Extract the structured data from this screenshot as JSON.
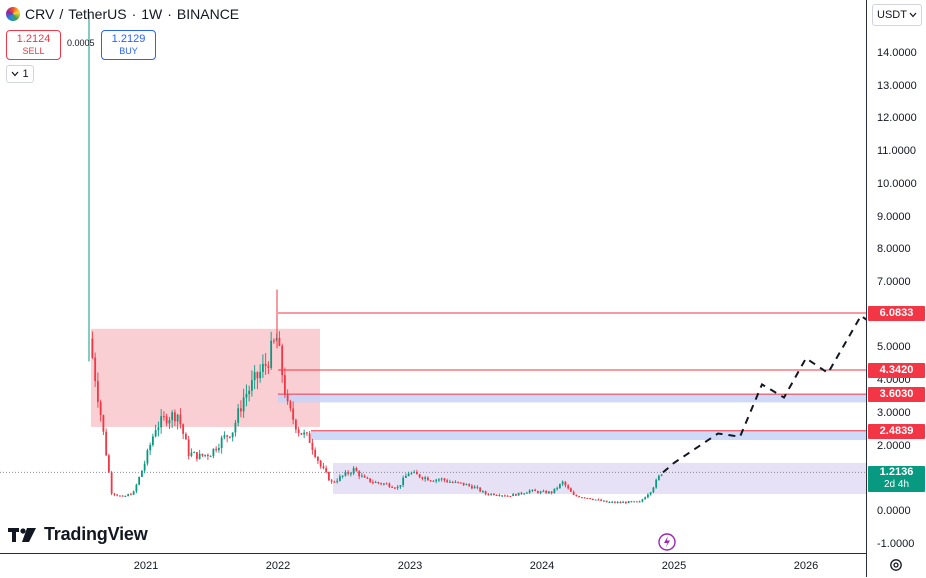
{
  "header": {
    "symbol": "CRV",
    "separator": "/",
    "quote": "TetherUS",
    "interval": "1W",
    "exchange": "BINANCE",
    "sell_price": "1.2124",
    "sell_label": "SELL",
    "spread": "0.0005",
    "buy_price": "1.2129",
    "buy_label": "BUY",
    "layers_count": "1"
  },
  "price_axis": {
    "currency": "USDT",
    "ticks": [
      "14.0000",
      "13.0000",
      "12.0000",
      "11.0000",
      "10.0000",
      "9.0000",
      "8.0000",
      "7.0000",
      "5.0000",
      "4.0000",
      "3.0000",
      "2.0000",
      "1.0000",
      "0.0000",
      "-1.0000"
    ]
  },
  "time_axis": {
    "ticks": [
      "2021",
      "2022",
      "2023",
      "2024",
      "2025",
      "2026"
    ]
  },
  "level_tags": [
    {
      "label": "6.0833",
      "color": "#f23645"
    },
    {
      "label": "4.3420",
      "color": "#f23645"
    },
    {
      "label": "3.6030",
      "color": "#f23645"
    },
    {
      "label": "2.4839",
      "color": "#f23645"
    }
  ],
  "current_price": {
    "label": "1.2136",
    "countdown": "2d 4h",
    "color": "#089981"
  },
  "branding": {
    "logo_text": "TradingView"
  },
  "colors": {
    "up": "#089981",
    "down": "#f23645",
    "supply_zone": "#f8c7cb",
    "demand_zone": "#c7d3f8",
    "range_zone": "#e3dcf5"
  },
  "chart_data": {
    "type": "candlestick",
    "symbol": "CRV / TetherUS",
    "interval": "1W",
    "ylim": [
      -1.2,
      15.2
    ],
    "close_series": [
      {
        "x": "2020-08",
        "y": 5.3
      },
      {
        "x": "2020-09",
        "y": 3.0
      },
      {
        "x": "2020-10",
        "y": 0.6
      },
      {
        "x": "2020-11",
        "y": 0.45
      },
      {
        "x": "2020-12",
        "y": 0.6
      },
      {
        "x": "2021-01",
        "y": 1.5
      },
      {
        "x": "2021-02",
        "y": 2.6
      },
      {
        "x": "2021-03",
        "y": 2.9
      },
      {
        "x": "2021-04",
        "y": 3.0
      },
      {
        "x": "2021-05",
        "y": 1.8
      },
      {
        "x": "2021-06",
        "y": 1.7
      },
      {
        "x": "2021-07",
        "y": 1.8
      },
      {
        "x": "2021-08",
        "y": 2.2
      },
      {
        "x": "2021-09",
        "y": 2.5
      },
      {
        "x": "2021-10",
        "y": 3.5
      },
      {
        "x": "2021-11",
        "y": 4.0
      },
      {
        "x": "2021-12",
        "y": 4.5
      },
      {
        "x": "2022-01",
        "y": 5.3
      },
      {
        "x": "2022-02",
        "y": 3.2
      },
      {
        "x": "2022-03",
        "y": 2.5
      },
      {
        "x": "2022-04",
        "y": 2.2
      },
      {
        "x": "2022-05",
        "y": 1.4
      },
      {
        "x": "2022-06",
        "y": 0.9
      },
      {
        "x": "2022-07",
        "y": 1.1
      },
      {
        "x": "2022-08",
        "y": 1.3
      },
      {
        "x": "2022-09",
        "y": 1.0
      },
      {
        "x": "2022-10",
        "y": 0.9
      },
      {
        "x": "2022-11",
        "y": 0.85
      },
      {
        "x": "2022-12",
        "y": 0.75
      },
      {
        "x": "2023-01",
        "y": 1.2
      },
      {
        "x": "2023-02",
        "y": 1.1
      },
      {
        "x": "2023-03",
        "y": 1.0
      },
      {
        "x": "2023-04",
        "y": 1.0
      },
      {
        "x": "2023-05",
        "y": 0.9
      },
      {
        "x": "2023-06",
        "y": 0.85
      },
      {
        "x": "2023-07",
        "y": 0.75
      },
      {
        "x": "2023-08",
        "y": 0.55
      },
      {
        "x": "2023-09",
        "y": 0.55
      },
      {
        "x": "2023-10",
        "y": 0.5
      },
      {
        "x": "2023-11",
        "y": 0.55
      },
      {
        "x": "2023-12",
        "y": 0.65
      },
      {
        "x": "2024-01",
        "y": 0.6
      },
      {
        "x": "2024-02",
        "y": 0.6
      },
      {
        "x": "2024-03",
        "y": 0.9
      },
      {
        "x": "2024-04",
        "y": 0.5
      },
      {
        "x": "2024-05",
        "y": 0.45
      },
      {
        "x": "2024-06",
        "y": 0.38
      },
      {
        "x": "2024-07",
        "y": 0.3
      },
      {
        "x": "2024-08",
        "y": 0.29
      },
      {
        "x": "2024-09",
        "y": 0.3
      },
      {
        "x": "2024-10",
        "y": 0.3
      },
      {
        "x": "2024-11",
        "y": 0.65
      },
      {
        "x": "2024-12",
        "y": 1.21
      }
    ],
    "levels": [
      6.0833,
      4.342,
      3.603,
      2.4839
    ],
    "current_price": 1.2136,
    "zones": [
      {
        "type": "supply",
        "from": "2020-08",
        "to": "2022-04",
        "low": 2.6,
        "high": 5.6
      },
      {
        "type": "demand",
        "from": "2022-01",
        "to": "open",
        "low": 3.35,
        "high": 3.6
      },
      {
        "type": "demand",
        "from": "2022-04",
        "to": "open",
        "low": 2.2,
        "high": 2.48
      },
      {
        "type": "range",
        "from": "2022-06",
        "to": "open",
        "low": 0.55,
        "high": 1.5
      }
    ],
    "projection": [
      {
        "x": "2024-12",
        "y": 1.21
      },
      {
        "x": "2025-01",
        "y": 1.5
      },
      {
        "x": "2025-05",
        "y": 2.4
      },
      {
        "x": "2025-07",
        "y": 2.3
      },
      {
        "x": "2025-09",
        "y": 3.9
      },
      {
        "x": "2025-11",
        "y": 3.5
      },
      {
        "x": "2026-01",
        "y": 4.7
      },
      {
        "x": "2026-03",
        "y": 4.25
      },
      {
        "x": "2026-06",
        "y": 6.0
      },
      {
        "x": "2026-07",
        "y": 5.75
      }
    ],
    "grid": false
  }
}
